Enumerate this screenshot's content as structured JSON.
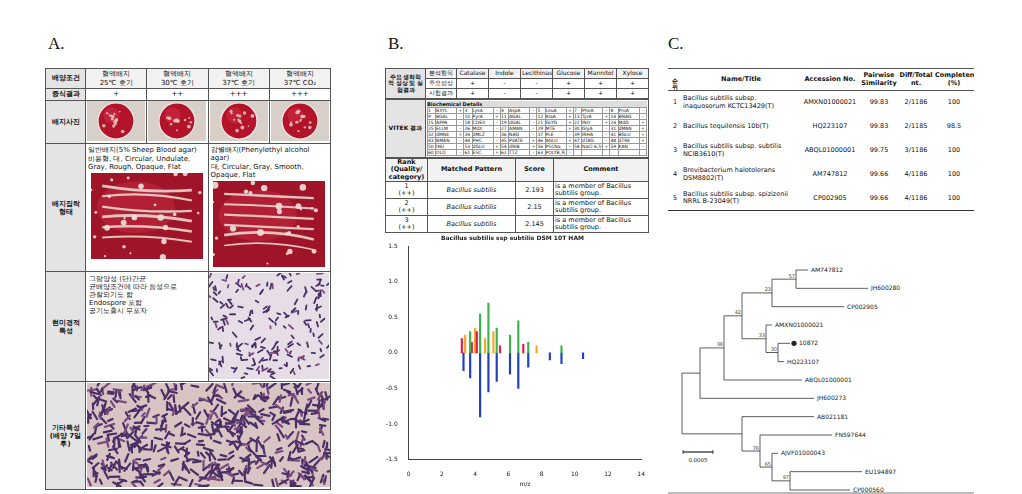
{
  "panels": {
    "a": {
      "label": "A.",
      "header_label": "배양조건",
      "conditions": [
        [
          "혈액배지",
          "25℃ 호기"
        ],
        [
          "혈액배지",
          "30℃ 호기"
        ],
        [
          "혈액배지",
          "37℃ 호기"
        ],
        [
          "혈액배지",
          "37℃ CO₂"
        ]
      ],
      "growth_label": "증식결과",
      "growth": [
        "+",
        "++",
        "+++",
        "+++"
      ],
      "photo_label": "배지사진",
      "colony_label": "배지집락 형태",
      "colony": [
        {
          "medium": "일반배지(5% Sheep Blood agar)",
          "description": "비용혈, 대, Circular, Undulate, Gray, Rough, Opaque, Flat"
        },
        {
          "medium": "감별배지(Phenylethyl alcohol agar)",
          "description": "대, Circular, Gray, Smooth, Opaque, Flat"
        }
      ],
      "micro_label": "현미경적 특성",
      "micro_text": [
        "그람양성 (단)간균",
        "균배양조건에 따라 음성으로",
        "관찰되기도 함",
        "Endospore 포함",
        "공기노출시 무포자"
      ],
      "other_label": [
        "기타특성",
        "(배양 7일 후)"
      ]
    },
    "b": {
      "label": "B.",
      "biochem": {
        "row_label": "주요 생화학적 성상 및 실험결과",
        "header_label": "분석항목",
        "items": [
          "Catalase",
          "Indole",
          "Lecithinase",
          "Glucose",
          "Mannitol",
          "Xylose"
        ],
        "rows": [
          {
            "label": "주요성상",
            "values": [
              "+",
              "-",
              "-",
              "+",
              "+",
              "+"
            ]
          },
          {
            "label": "시험결과",
            "values": [
              "+",
              "-",
              "-",
              "+",
              "+",
              "+"
            ]
          }
        ]
      },
      "vitek": {
        "row_label": "VITEK 결과",
        "title": "Biochemical Details",
        "tests": [
          [
            1,
            "BXYL",
            "+"
          ],
          [
            3,
            "LysA",
            "-"
          ],
          [
            4,
            "AspA",
            "-"
          ],
          [
            5,
            "LeuA",
            "+"
          ],
          [
            7,
            "PheA",
            "-"
          ],
          [
            8,
            "ProA",
            "-"
          ],
          [
            9,
            "BGAL",
            "-"
          ],
          [
            10,
            "PyrA",
            "+"
          ],
          [
            11,
            "AGAL",
            "-"
          ],
          [
            12,
            "AlaA",
            "+"
          ],
          [
            13,
            "TyrA",
            "+"
          ],
          [
            14,
            "BNAG",
            "-"
          ],
          [
            15,
            "APPA",
            "-"
          ],
          [
            18,
            "CDEX",
            "-"
          ],
          [
            19,
            "dGAL",
            "-"
          ],
          [
            21,
            "GLYG",
            "+"
          ],
          [
            22,
            "INO",
            "+"
          ],
          [
            24,
            "MdG",
            "+"
          ],
          [
            25,
            "ELLM",
            "-"
          ],
          [
            26,
            "MdX",
            "-"
          ],
          [
            27,
            "AMAN",
            "-"
          ],
          [
            29,
            "MTE",
            "+"
          ],
          [
            30,
            "GlyA",
            "-"
          ],
          [
            31,
            "dMAN",
            "+"
          ],
          [
            32,
            "dMNE",
            "+"
          ],
          [
            34,
            "dMLZ",
            "-"
          ],
          [
            36,
            "NAG",
            "-"
          ],
          [
            37,
            "PLE",
            "-"
          ],
          [
            39,
            "IRHA",
            "-"
          ],
          [
            41,
            "BGLU",
            "+"
          ],
          [
            43,
            "BMAN",
            "-"
          ],
          [
            44,
            "PHC",
            "-"
          ],
          [
            45,
            "PVATE",
            "+"
          ],
          [
            46,
            "AGLU",
            "+"
          ],
          [
            47,
            "dTAG",
            "-"
          ],
          [
            48,
            "dTRE",
            "+"
          ],
          [
            50,
            "INU",
            "-"
          ],
          [
            53,
            "dGLU",
            "+"
          ],
          [
            54,
            "dRIB",
            "+"
          ],
          [
            56,
            "PSCNa",
            "-"
          ],
          [
            58,
            "NaCl 6.5%",
            "+"
          ],
          [
            59,
            "KAN",
            "-"
          ],
          [
            60,
            "OLD",
            "-"
          ],
          [
            61,
            "ESC",
            "+"
          ],
          [
            62,
            "TTZ",
            "-"
          ],
          [
            63,
            "POLYB_R",
            "-"
          ]
        ]
      },
      "maldi": {
        "columns": [
          [
            "Rank",
            "(Quality/",
            "category)"
          ],
          [
            "Matched Pattern"
          ],
          [
            "Score"
          ],
          [
            "Comment"
          ]
        ],
        "rows": [
          {
            "rank": "1",
            "quality": "(++)",
            "pattern": "Bacillus subtilis",
            "score": 2.193,
            "comment": "is a member of Bacillus subtilis group."
          },
          {
            "rank": "2",
            "quality": "(++)",
            "pattern": "Bacillus subtilis",
            "score": 2.15,
            "comment": "is a member of Bacillus subtilis group."
          },
          {
            "rank": "3",
            "quality": "(++)",
            "pattern": "Bacillus subtilis",
            "score": 2.145,
            "comment": "is a member of Bacillus subtilis group."
          }
        ]
      }
    },
    "c": {
      "label": "C.",
      "table": {
        "columns": [
          "순위",
          "Name/Title",
          "Accession No.",
          "Pairwise Similarity",
          "Diff/Total nt.",
          "Completeness (%)"
        ],
        "rows": [
          [
            "1",
            "Bacillus subtilis subsp. inaquosorum KCTC13429(T)",
            "AMXN01000021",
            99.83,
            "2/1186",
            100
          ],
          [
            "2",
            "Bacillus tequilensis 10b(T)",
            "HQ223107",
            99.83,
            "2/1185",
            98.5
          ],
          [
            "3",
            "Bacillus subtilis subsp. subtilis NCIB3610(T)",
            "ABQL01000001",
            99.75,
            "3/1186",
            100
          ],
          [
            "4",
            "Brevibacterium halotolerans DSM8802(T)",
            "AM747812",
            99.66,
            "4/1186",
            100
          ],
          [
            "5",
            "Bacillus subtilis subsp. spizizenii NRRL B-23049(T)",
            "CP002905",
            99.66,
            "4/1186",
            100
          ]
        ]
      },
      "tree": {
        "scale_bar": {
          "value": 0.0005,
          "label": "0.0005"
        },
        "root": {
          "children": [
            {
              "length": 0.0003,
              "children": [
                {
                  "length": 0.0004,
                  "bootstrap": 38,
                  "children": [
                    {
                      "length": 0.0003,
                      "bootstrap": 42,
                      "children": [
                        {
                          "length": 0.0005,
                          "bootstrap": 23,
                          "children": [
                            {
                              "length": 0.0004,
                              "bootstrap": 57,
                              "children": [
                                {
                                  "length": 0.0002,
                                  "name": "AM747812"
                                },
                                {
                                  "length": 0.0012,
                                  "name": "JH600280"
                                }
                              ]
                            },
                            {
                              "length": 0.0012,
                              "name": "CP002905"
                            }
                          ]
                        },
                        {
                          "length": 0.0004,
                          "bootstrap": 33,
                          "children": [
                            {
                              "length": 0.0001,
                              "name": "AMXN01000021"
                            },
                            {
                              "length": 0.0002,
                              "bootstrap": 30,
                              "children": [
                                {
                                  "length": 0.0002,
                                  "name": "10872",
                                  "marker": "circle"
                                },
                                {
                                  "length": 0.0001,
                                  "name": "HQ223107"
                                }
                              ]
                            }
                          ]
                        }
                      ]
                    },
                    {
                      "length": 0.0013,
                      "name": "ABQL01000001"
                    }
                  ]
                },
                {
                  "length": 0.0019,
                  "name": "JH600273"
                }
              ]
            },
            {
              "length": 0.001,
              "children": [
                {
                  "length": 0.0012,
                  "name": "AB021181"
                },
                {
                  "length": 0.0003,
                  "bootstrap": 76,
                  "children": [
                    {
                      "length": 0.0012,
                      "name": "FN597644"
                    },
                    {
                      "length": 0.0002,
                      "bootstrap": 65,
                      "children": [
                        {
                          "length": 0.0001,
                          "name": "AJVF01000043"
                        },
                        {
                          "length": 0.0003,
                          "bootstrap": 97,
                          "children": [
                            {
                              "length": 0.0012,
                              "name": "EU194897"
                            },
                            {
                              "length": 0.001,
                              "name": "CP000560"
                            }
                          ]
                        }
                      ]
                    }
                  ]
                }
              ]
            }
          ]
        }
      }
    }
  },
  "chart_data": {
    "type": "bar",
    "title": "Bacillus subtilis ssp subtilis DSM 10T HAM",
    "x_label": "m/z",
    "xlim": [
      0,
      14
    ],
    "xticks": [
      0,
      2,
      4,
      6,
      8,
      10,
      12,
      14
    ],
    "ylim": [
      -1.5,
      1.5
    ],
    "yticks": [
      {
        "value": -1.5,
        "label": "-1.5"
      },
      {
        "value": -1,
        "label": "-1.0"
      },
      {
        "value": -0.5,
        "label": "-0.5"
      },
      {
        "value": 0,
        "label": "0.0"
      },
      {
        "value": 0.5,
        "label": "0.5"
      },
      {
        "value": 1,
        "label": "1.0"
      },
      {
        "value": 1.5,
        "label": "1.5"
      }
    ],
    "grid": false,
    "series": [
      {
        "color": "#3cb44b",
        "x": [
          3.7,
          4.3,
          4.8,
          5.3,
          6.1,
          6.6,
          7.2,
          9.2
        ],
        "values": [
          0.3,
          0.55,
          0.7,
          0.35,
          0.25,
          0.45,
          0.15,
          0.1
        ]
      },
      {
        "color": "#e6194b",
        "x": [
          3.2,
          3.8,
          4.1,
          5.5,
          6.9
        ],
        "values": [
          0.2,
          0.15,
          0.3,
          0.1,
          0.12
        ]
      },
      {
        "color": "#f5a623",
        "x": [
          3.4,
          4.0,
          4.6,
          5.1,
          7.7
        ],
        "values": [
          0.25,
          0.35,
          0.2,
          0.3,
          0.1
        ]
      },
      {
        "color": "#1f3fbf",
        "x": [
          3.3,
          3.7,
          4.3,
          4.8,
          5.3,
          6.1,
          6.6,
          7.2,
          8.5,
          9.2,
          10.5
        ],
        "values": [
          -0.25,
          -0.35,
          -0.9,
          -0.55,
          -0.4,
          -0.3,
          -0.5,
          -0.2,
          -0.1,
          -0.15,
          -0.08
        ]
      }
    ]
  }
}
